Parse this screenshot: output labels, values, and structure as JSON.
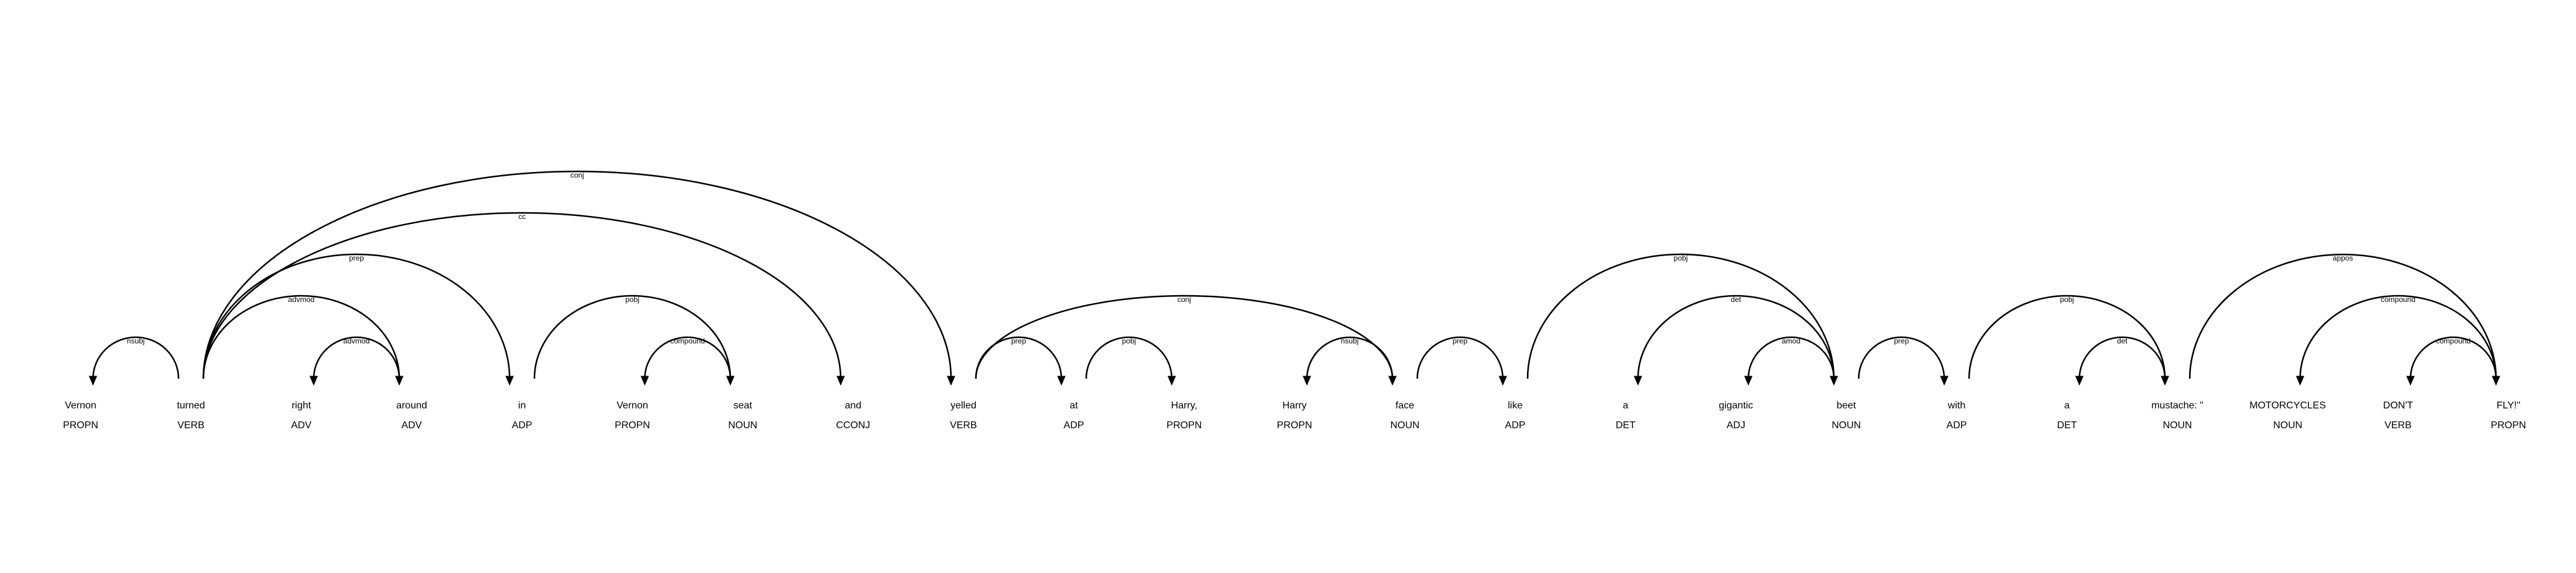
{
  "tokens": [
    {
      "text": "Vernon",
      "tag": "PROPN"
    },
    {
      "text": "turned",
      "tag": "VERB"
    },
    {
      "text": "right",
      "tag": "ADV"
    },
    {
      "text": "around",
      "tag": "ADV"
    },
    {
      "text": "in",
      "tag": "ADP"
    },
    {
      "text": "Vernon",
      "tag": "PROPN"
    },
    {
      "text": "seat",
      "tag": "NOUN"
    },
    {
      "text": "and",
      "tag": "CCONJ"
    },
    {
      "text": "yelled",
      "tag": "VERB"
    },
    {
      "text": "at",
      "tag": "ADP"
    },
    {
      "text": "Harry,",
      "tag": "PROPN"
    },
    {
      "text": "Harry",
      "tag": "PROPN"
    },
    {
      "text": "face",
      "tag": "NOUN"
    },
    {
      "text": "like",
      "tag": "ADP"
    },
    {
      "text": "a",
      "tag": "DET"
    },
    {
      "text": "gigantic",
      "tag": "ADJ"
    },
    {
      "text": "beet",
      "tag": "NOUN"
    },
    {
      "text": "with",
      "tag": "ADP"
    },
    {
      "text": "a",
      "tag": "DET"
    },
    {
      "text": "mustache: \"",
      "tag": "NOUN"
    },
    {
      "text": "MOTORCYCLES",
      "tag": "NOUN"
    },
    {
      "text": "DON'T",
      "tag": "VERB"
    },
    {
      "text": "FLY!\"",
      "tag": "PROPN"
    }
  ],
  "arcs": [
    {
      "start": 0,
      "end": 1,
      "label": "nsubj",
      "dir": "left"
    },
    {
      "start": 1,
      "end": 3,
      "label": "advmod",
      "dir": "right"
    },
    {
      "start": 1,
      "end": 4,
      "label": "prep",
      "dir": "right"
    },
    {
      "start": 1,
      "end": 7,
      "label": "cc",
      "dir": "right"
    },
    {
      "start": 1,
      "end": 8,
      "label": "conj",
      "dir": "right"
    },
    {
      "start": 2,
      "end": 3,
      "label": "advmod",
      "dir": "left"
    },
    {
      "start": 4,
      "end": 6,
      "label": "pobj",
      "dir": "right"
    },
    {
      "start": 5,
      "end": 6,
      "label": "compound",
      "dir": "left"
    },
    {
      "start": 8,
      "end": 9,
      "label": "prep",
      "dir": "right"
    },
    {
      "start": 8,
      "end": 12,
      "label": "conj",
      "dir": "right"
    },
    {
      "start": 9,
      "end": 10,
      "label": "pobj",
      "dir": "right"
    },
    {
      "start": 11,
      "end": 12,
      "label": "nsubj",
      "dir": "left"
    },
    {
      "start": 12,
      "end": 13,
      "label": "prep",
      "dir": "right"
    },
    {
      "start": 13,
      "end": 16,
      "label": "pobj",
      "dir": "right"
    },
    {
      "start": 14,
      "end": 16,
      "label": "det",
      "dir": "left"
    },
    {
      "start": 15,
      "end": 16,
      "label": "amod",
      "dir": "left"
    },
    {
      "start": 16,
      "end": 17,
      "label": "prep",
      "dir": "right"
    },
    {
      "start": 17,
      "end": 19,
      "label": "pobj",
      "dir": "right"
    },
    {
      "start": 18,
      "end": 19,
      "label": "det",
      "dir": "left"
    },
    {
      "start": 19,
      "end": 22,
      "label": "appos",
      "dir": "right"
    },
    {
      "start": 20,
      "end": 22,
      "label": "compound",
      "dir": "left"
    },
    {
      "start": 21,
      "end": 22,
      "label": "compound",
      "dir": "left"
    }
  ]
}
